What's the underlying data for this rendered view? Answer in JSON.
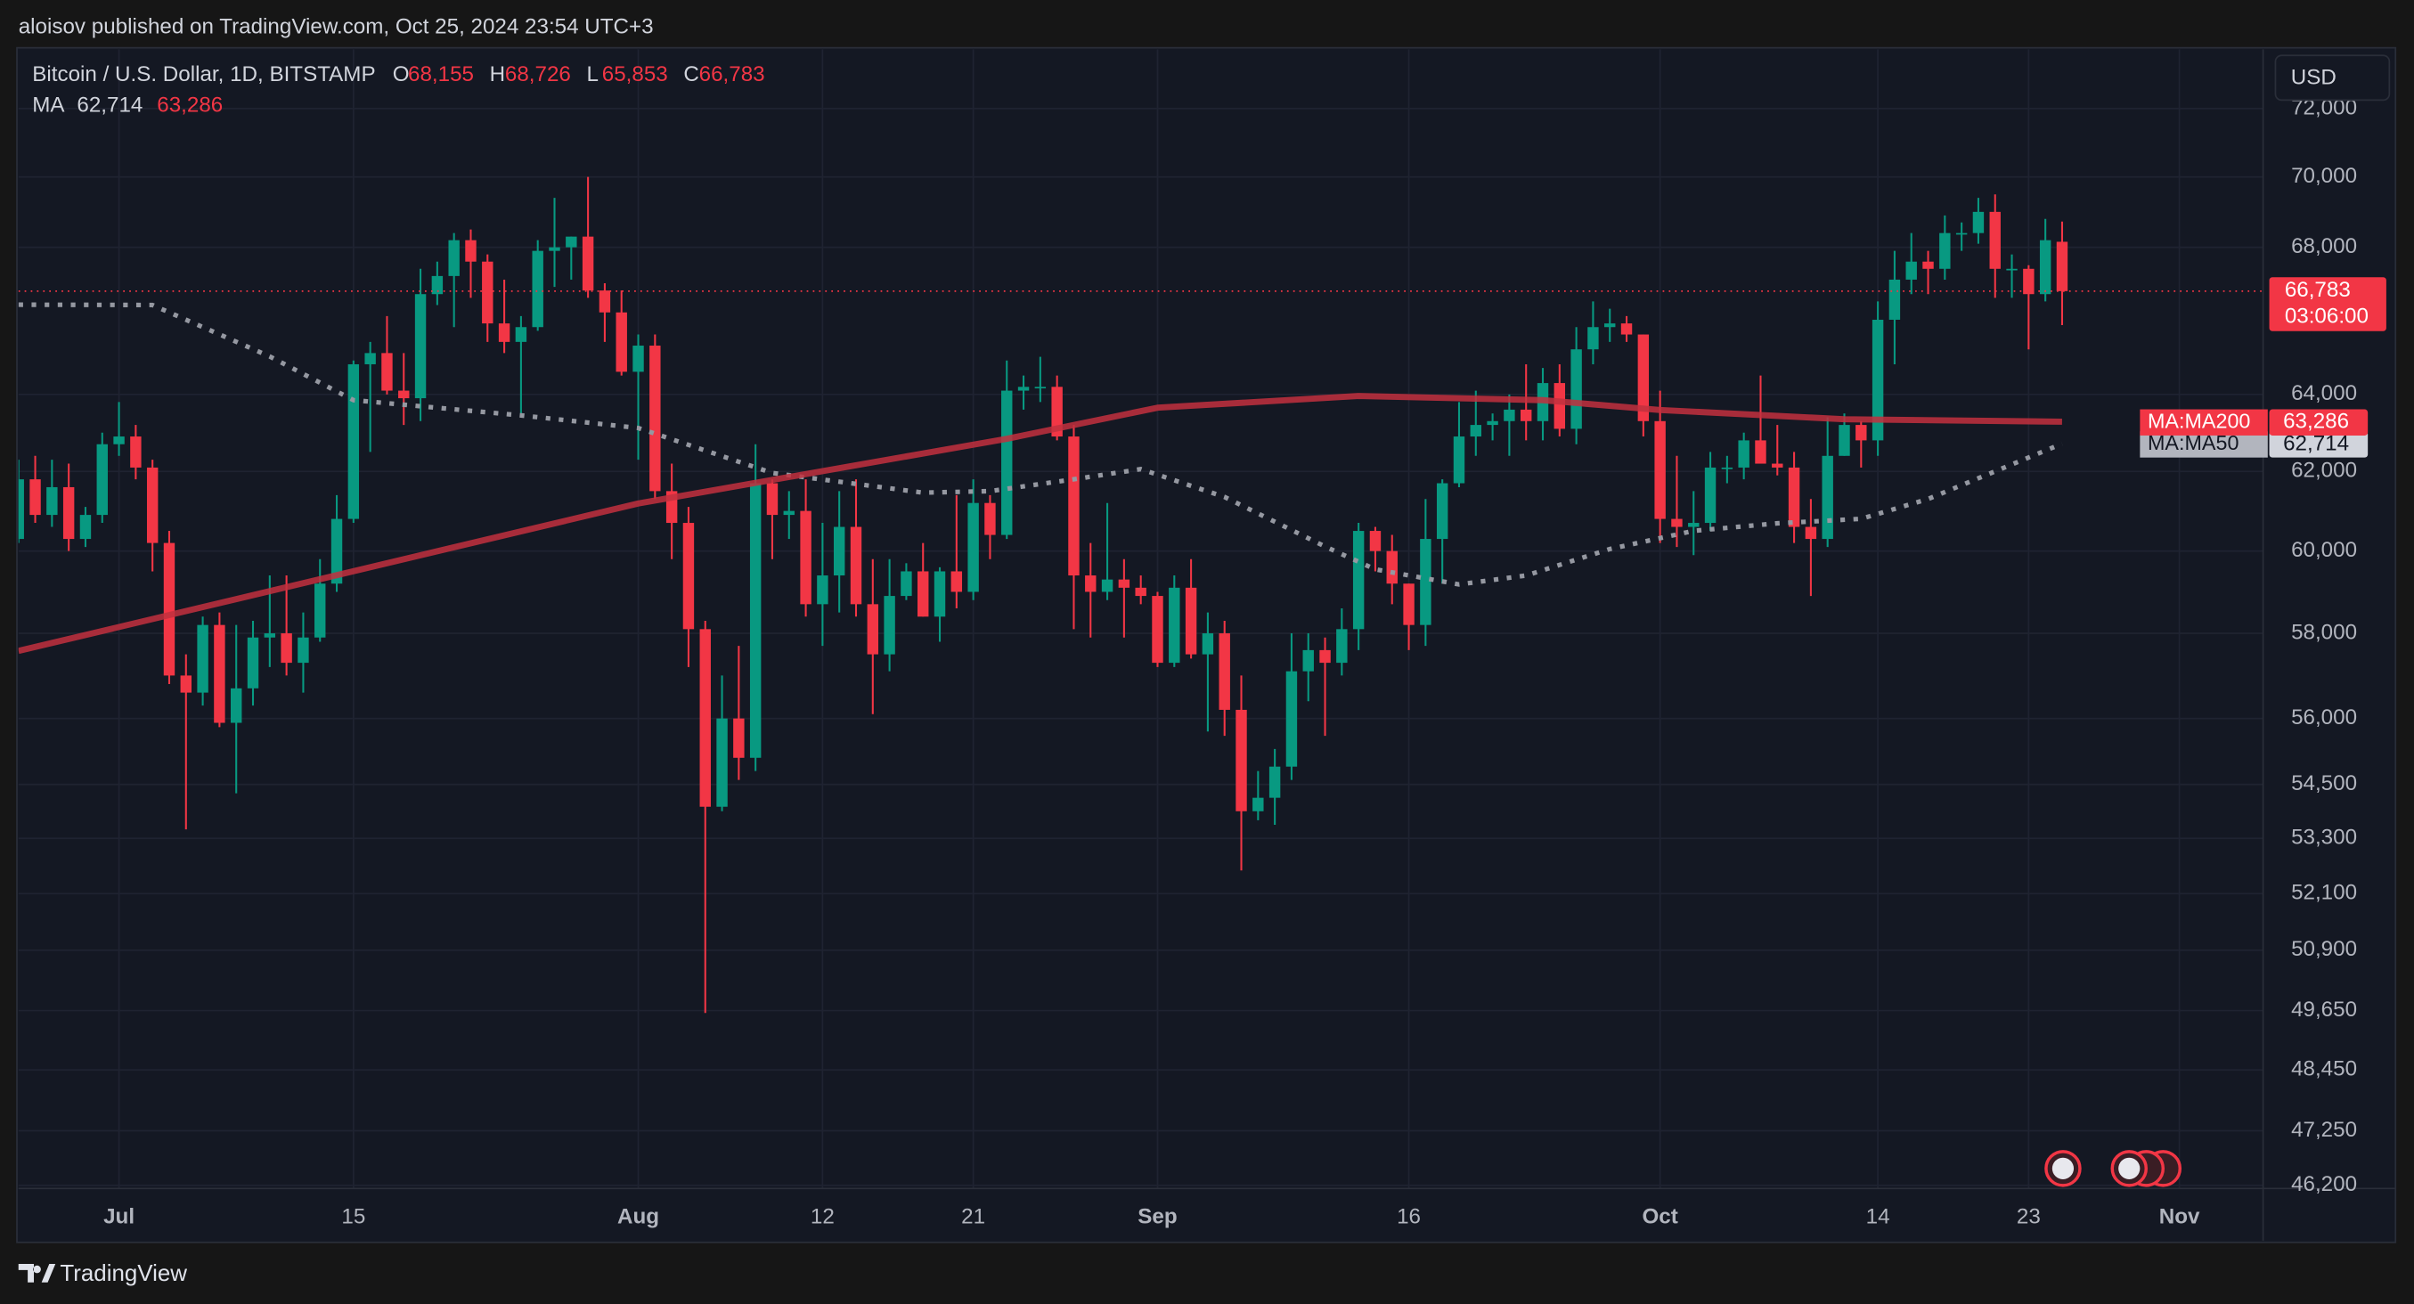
{
  "header": {
    "publisher": "aloisov published on TradingView.com, Oct 25, 2024 23:54 UTC+3",
    "brand": "TradingView",
    "currency": "USD"
  },
  "chart_data": {
    "type": "candlestick",
    "title": "Bitcoin / U.S. Dollar, 1D, BITSTAMP",
    "x": [
      "2024-06-25",
      "2024-06-26",
      "2024-06-27",
      "2024-06-28",
      "2024-06-29",
      "2024-06-30",
      "2024-07-01",
      "2024-07-02",
      "2024-07-03",
      "2024-07-04",
      "2024-07-05",
      "2024-07-06",
      "2024-07-07",
      "2024-07-08",
      "2024-07-09",
      "2024-07-10",
      "2024-07-11",
      "2024-07-12",
      "2024-07-13",
      "2024-07-14",
      "2024-07-15",
      "2024-07-16",
      "2024-07-17",
      "2024-07-18",
      "2024-07-19",
      "2024-07-20",
      "2024-07-21",
      "2024-07-22",
      "2024-07-23",
      "2024-07-24",
      "2024-07-25",
      "2024-07-26",
      "2024-07-27",
      "2024-07-28",
      "2024-07-29",
      "2024-07-30",
      "2024-07-31",
      "2024-08-01",
      "2024-08-02",
      "2024-08-03",
      "2024-08-04",
      "2024-08-05",
      "2024-08-06",
      "2024-08-07",
      "2024-08-08",
      "2024-08-09",
      "2024-08-10",
      "2024-08-11",
      "2024-08-12",
      "2024-08-13",
      "2024-08-14",
      "2024-08-15",
      "2024-08-16",
      "2024-08-17",
      "2024-08-18",
      "2024-08-19",
      "2024-08-20",
      "2024-08-21",
      "2024-08-22",
      "2024-08-23",
      "2024-08-24",
      "2024-08-25",
      "2024-08-26",
      "2024-08-27",
      "2024-08-28",
      "2024-08-29",
      "2024-08-30",
      "2024-08-31",
      "2024-09-01",
      "2024-09-02",
      "2024-09-03",
      "2024-09-04",
      "2024-09-05",
      "2024-09-06",
      "2024-09-07",
      "2024-09-08",
      "2024-09-09",
      "2024-09-10",
      "2024-09-11",
      "2024-09-12",
      "2024-09-13",
      "2024-09-14",
      "2024-09-15",
      "2024-09-16",
      "2024-09-17",
      "2024-09-18",
      "2024-09-19",
      "2024-09-20",
      "2024-09-21",
      "2024-09-22",
      "2024-09-23",
      "2024-09-24",
      "2024-09-25",
      "2024-09-26",
      "2024-09-27",
      "2024-09-28",
      "2024-09-29",
      "2024-09-30",
      "2024-10-01",
      "2024-10-02",
      "2024-10-03",
      "2024-10-04",
      "2024-10-05",
      "2024-10-06",
      "2024-10-07",
      "2024-10-08",
      "2024-10-09",
      "2024-10-10",
      "2024-10-11",
      "2024-10-12",
      "2024-10-13",
      "2024-10-14",
      "2024-10-15",
      "2024-10-16",
      "2024-10-17",
      "2024-10-18",
      "2024-10-19",
      "2024-10-20",
      "2024-10-21",
      "2024-10-22",
      "2024-10-23",
      "2024-10-24",
      "2024-10-25"
    ],
    "open": [
      60300,
      61800,
      60900,
      61600,
      60300,
      60900,
      62700,
      62900,
      62100,
      60200,
      57000,
      56600,
      58200,
      55900,
      56700,
      57900,
      58000,
      57300,
      57900,
      59200,
      60800,
      64800,
      65100,
      64100,
      63900,
      66700,
      67200,
      68200,
      67600,
      65900,
      65400,
      65800,
      67900,
      68000,
      68300,
      66800,
      66200,
      64600,
      65300,
      61500,
      60700,
      58100,
      54000,
      56000,
      55100,
      61700,
      60900,
      61000,
      58700,
      59400,
      60600,
      58700,
      57500,
      58900,
      59500,
      58400,
      59500,
      59000,
      61200,
      60400,
      64100,
      64200,
      64200,
      62900,
      59400,
      59000,
      59300,
      59100,
      58900,
      57300,
      59100,
      57500,
      58000,
      56200,
      53900,
      54200,
      54900,
      57100,
      57600,
      57300,
      58100,
      60500,
      60000,
      59200,
      58200,
      60300,
      61700,
      62900,
      63200,
      63300,
      63600,
      63300,
      64300,
      63100,
      65200,
      65800,
      65900,
      65600,
      63300,
      60800,
      60600,
      60700,
      62100,
      62100,
      62800,
      62200,
      62100,
      60600,
      60300,
      62400,
      63200,
      62800,
      66000,
      67100,
      67600,
      67400,
      68400,
      68400,
      69000,
      67400,
      67400,
      66700,
      68155
    ],
    "high": [
      62300,
      62400,
      62300,
      62200,
      61100,
      63000,
      63800,
      63200,
      62300,
      60500,
      57500,
      58400,
      58500,
      58200,
      58300,
      59400,
      59400,
      58500,
      59800,
      61400,
      64900,
      65400,
      66100,
      65100,
      67400,
      67600,
      68400,
      68500,
      67800,
      67100,
      66100,
      68200,
      69400,
      68300,
      70000,
      67000,
      66800,
      65600,
      65600,
      62200,
      61100,
      58300,
      57000,
      57700,
      62700,
      61800,
      61500,
      61800,
      60700,
      61500,
      61800,
      59800,
      59800,
      59700,
      60200,
      59600,
      61400,
      61800,
      61400,
      64900,
      64500,
      65000,
      64500,
      63200,
      60200,
      61200,
      59800,
      59400,
      59000,
      59400,
      59800,
      58500,
      58300,
      57000,
      54800,
      55300,
      58000,
      58000,
      57900,
      58600,
      60700,
      60600,
      60400,
      59200,
      61300,
      61800,
      63800,
      64100,
      63500,
      64000,
      64800,
      64700,
      64800,
      65800,
      66500,
      66300,
      66100,
      65600,
      64100,
      62400,
      61500,
      62500,
      62400,
      63000,
      64500,
      63200,
      62500,
      61300,
      63400,
      63500,
      63300,
      66500,
      67900,
      68400,
      67900,
      68900,
      68700,
      69400,
      69500,
      67800,
      67500,
      68800,
      68726
    ],
    "low": [
      60200,
      60700,
      60600,
      60000,
      60100,
      60700,
      62400,
      61800,
      59500,
      56800,
      53500,
      56300,
      55800,
      54300,
      56300,
      57200,
      57000,
      56600,
      57800,
      59000,
      60700,
      62500,
      64000,
      63200,
      63300,
      66400,
      65800,
      66600,
      65400,
      65100,
      63400,
      65700,
      66900,
      67100,
      66600,
      65400,
      64500,
      62300,
      61300,
      59800,
      57200,
      49600,
      53900,
      54600,
      54800,
      59800,
      60300,
      58400,
      57700,
      58500,
      58400,
      56100,
      57100,
      58800,
      58400,
      57800,
      58600,
      58800,
      59800,
      60300,
      63600,
      63800,
      62800,
      58100,
      57900,
      58800,
      57900,
      58700,
      57200,
      57200,
      57400,
      55700,
      55600,
      52600,
      53700,
      53600,
      54600,
      56400,
      55600,
      57000,
      57600,
      59500,
      58700,
      57600,
      57700,
      59200,
      61600,
      62400,
      62800,
      62400,
      62800,
      62800,
      62900,
      62700,
      64800,
      65400,
      65400,
      62900,
      60200,
      60100,
      59900,
      60500,
      61700,
      61800,
      62200,
      61900,
      60200,
      58900,
      60100,
      62400,
      62100,
      62400,
      64800,
      66700,
      66700,
      67100,
      67900,
      68100,
      66600,
      66600,
      65200,
      66500,
      65853
    ],
    "close": [
      61800,
      60900,
      61600,
      60300,
      60900,
      62700,
      62900,
      62100,
      60200,
      57000,
      56600,
      58200,
      55900,
      56700,
      57900,
      58000,
      57300,
      57900,
      59200,
      60800,
      64800,
      65100,
      64100,
      63900,
      66700,
      67200,
      68200,
      67600,
      65900,
      65400,
      65800,
      67900,
      68000,
      68300,
      66800,
      66200,
      64600,
      65300,
      61500,
      60700,
      58100,
      54000,
      56000,
      55100,
      61700,
      60900,
      61000,
      58700,
      59400,
      60600,
      58700,
      57500,
      58900,
      59500,
      58400,
      59500,
      59000,
      61200,
      60400,
      64100,
      64200,
      64200,
      62900,
      59400,
      59000,
      59300,
      59100,
      58900,
      57300,
      59100,
      57500,
      58000,
      56200,
      53900,
      54200,
      54900,
      57100,
      57600,
      57300,
      58100,
      60500,
      60000,
      59200,
      58200,
      60300,
      61700,
      62900,
      63200,
      63300,
      63600,
      63300,
      64300,
      63100,
      65200,
      65800,
      65900,
      65600,
      63300,
      60800,
      60600,
      60700,
      62100,
      62100,
      62800,
      62200,
      62100,
      60600,
      60300,
      62400,
      63200,
      62800,
      66000,
      67100,
      67600,
      67400,
      68400,
      68400,
      69000,
      67400,
      67400,
      66700,
      68200,
      66783
    ],
    "ohlc_keys": [
      "O",
      "H",
      "L",
      "C"
    ],
    "ohlc_labels": [
      "68,155",
      "68,726",
      "65,853",
      "66,783"
    ],
    "up_color": "#089981",
    "down_color": "#f23645",
    "countdown": "03:06:00",
    "indicator": {
      "name": "MA",
      "series": [
        {
          "name": "MA:MA50",
          "label": "62,714",
          "color": "#9598a1",
          "style": "cross",
          "x": [
            "2024-06-25",
            "2024-07-03",
            "2024-07-10",
            "2024-07-15",
            "2024-07-25",
            "2024-08-01",
            "2024-08-09",
            "2024-08-18",
            "2024-08-22",
            "2024-08-27",
            "2024-08-31",
            "2024-09-05",
            "2024-09-11",
            "2024-09-14",
            "2024-09-19",
            "2024-09-23",
            "2024-09-28",
            "2024-10-03",
            "2024-10-08",
            "2024-10-13",
            "2024-10-17",
            "2024-10-25"
          ],
          "values": [
            66410,
            66400,
            65010,
            63850,
            63450,
            63120,
            61960,
            61460,
            61500,
            61800,
            62060,
            61350,
            60110,
            59550,
            59180,
            59400,
            60050,
            60500,
            60690,
            60800,
            61300,
            62714
          ]
        },
        {
          "name": "MA:MA200",
          "label": "63,286",
          "color": "#c2303e",
          "style": "line",
          "x": [
            "2024-06-25",
            "2024-08-01",
            "2024-08-23",
            "2024-09-01",
            "2024-09-13",
            "2024-09-24",
            "2024-10-01",
            "2024-10-12",
            "2024-10-25"
          ],
          "values": [
            57580,
            61190,
            62840,
            63650,
            63960,
            63850,
            63590,
            63350,
            63286
          ]
        }
      ]
    },
    "log_scale": true,
    "grid": true,
    "ylim": [
      46140,
      73780
    ],
    "yticks": [
      {
        "value": 46200,
        "label": "46,200"
      },
      {
        "value": 47250,
        "label": "47,250"
      },
      {
        "value": 48450,
        "label": "48,450"
      },
      {
        "value": 49650,
        "label": "49,650"
      },
      {
        "value": 50900,
        "label": "50,900"
      },
      {
        "value": 52100,
        "label": "52,100"
      },
      {
        "value": 53300,
        "label": "53,300"
      },
      {
        "value": 54500,
        "label": "54,500"
      },
      {
        "value": 56000,
        "label": "56,000"
      },
      {
        "value": 58000,
        "label": "58,000"
      },
      {
        "value": 60000,
        "label": "60,000"
      },
      {
        "value": 62000,
        "label": "62,000"
      },
      {
        "value": 64000,
        "label": "64,000"
      },
      {
        "value": 68000,
        "label": "68,000"
      },
      {
        "value": 70000,
        "label": "70,000"
      },
      {
        "value": 72000,
        "label": "72,000"
      }
    ],
    "xlim": [
      "2024-06-25",
      "2024-11-06"
    ],
    "xticks": [
      {
        "value": "2024-07-01",
        "label": "Jul"
      },
      {
        "value": "2024-07-15",
        "label": "15"
      },
      {
        "value": "2024-08-01",
        "label": "Aug"
      },
      {
        "value": "2024-08-12",
        "label": "12"
      },
      {
        "value": "2024-08-21",
        "label": "21"
      },
      {
        "value": "2024-09-01",
        "label": "Sep"
      },
      {
        "value": "2024-09-16",
        "label": "16"
      },
      {
        "value": "2024-10-01",
        "label": "Oct"
      },
      {
        "value": "2024-10-14",
        "label": "14"
      },
      {
        "value": "2024-10-23",
        "label": "23"
      },
      {
        "value": "2024-11-01",
        "label": "Nov"
      }
    ]
  }
}
